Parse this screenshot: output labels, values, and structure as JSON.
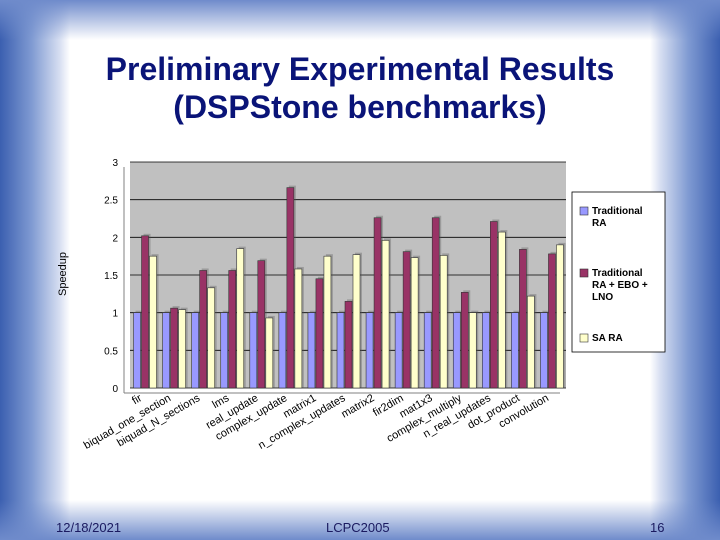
{
  "slide": {
    "title_line1": "Preliminary Experimental Results",
    "title_line2": "(DSPStone benchmarks)",
    "footer_date": "12/18/2021",
    "footer_center": "LCPC2005",
    "page_number": "16"
  },
  "chart_data": {
    "type": "bar",
    "title": "",
    "xlabel": "",
    "ylabel": "Speedup",
    "ylim": [
      0,
      3
    ],
    "yticks": [
      "0",
      "0.5",
      "1",
      "1.5",
      "2",
      "2.5",
      "3"
    ],
    "grid": true,
    "legend_position": "right",
    "categories": [
      "fir",
      "biquad_one_section",
      "biquad_N_sections",
      "lms",
      "real_update",
      "complex_update",
      "matrix1",
      "n_complex_updates",
      "matrix2",
      "fir2dim",
      "mat1x3",
      "complex_multiply",
      "n_real_updates",
      "dot_product",
      "convolution"
    ],
    "series": [
      {
        "name": "Traditional RA",
        "color": "#9999ff",
        "values": [
          1,
          1,
          1,
          1,
          1,
          1,
          1,
          1,
          1,
          1,
          1,
          1,
          1,
          1,
          1
        ]
      },
      {
        "name": "Traditional RA + EBO + LNO",
        "color": "#993366",
        "values": [
          2.02,
          1.06,
          1.56,
          1.56,
          1.69,
          2.66,
          1.45,
          1.15,
          2.26,
          1.81,
          2.26,
          1.27,
          2.21,
          1.84,
          1.78
        ]
      },
      {
        "name": "SA RA",
        "color": "#ffffcc",
        "values": [
          1.75,
          1.04,
          1.33,
          1.85,
          0.93,
          1.58,
          1.75,
          1.77,
          1.96,
          1.73,
          1.76,
          1.0,
          2.07,
          1.22,
          1.9
        ]
      }
    ],
    "legend_labels": [
      [
        "Traditional",
        "RA"
      ],
      [
        "Traditional",
        "RA + EBO +",
        "LNO"
      ],
      [
        "SA RA"
      ]
    ]
  }
}
